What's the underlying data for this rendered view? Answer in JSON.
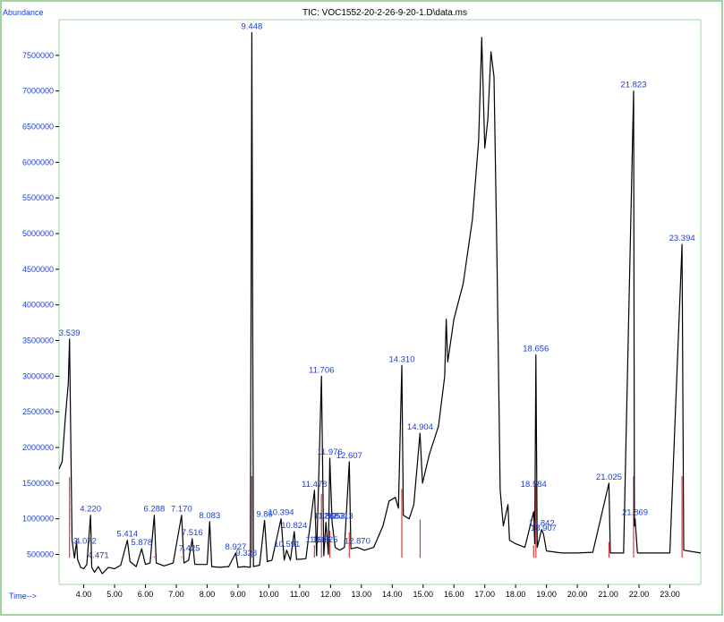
{
  "chart_data": {
    "type": "line",
    "title": "TIC: VOC1552-20-2-26-9-20-1.D\\data.ms",
    "ylabel": "Abundance",
    "xlabel": "Time-->",
    "xlim": [
      3.2,
      24.0
    ],
    "ylim": [
      80000,
      8000000
    ],
    "x_ticks": [
      "4.00",
      "5.00",
      "6.00",
      "7.00",
      "8.00",
      "9.00",
      "10.00",
      "11.00",
      "12.00",
      "13.00",
      "14.00",
      "15.00",
      "16.00",
      "17.00",
      "18.00",
      "19.00",
      "20.00",
      "21.00",
      "22.00",
      "23.00"
    ],
    "y_ticks": [
      "500000",
      "1000000",
      "1500000",
      "2000000",
      "2500000",
      "3000000",
      "3500000",
      "4000000",
      "4500000",
      "5000000",
      "5500000",
      "6000000",
      "6500000",
      "7000000",
      "7500000"
    ],
    "colors": {
      "trace": "#000000",
      "integration": "#d04040",
      "labels": "#1a3fd0",
      "axis_text": "#1a3fd0",
      "grid_frame": "#8ec98e"
    },
    "trace_points": [
      [
        3.2,
        1700000
      ],
      [
        3.3,
        1800000
      ],
      [
        3.4,
        2400000
      ],
      [
        3.5,
        2900000
      ],
      [
        3.539,
        3520000
      ],
      [
        3.58,
        2100000
      ],
      [
        3.62,
        700000
      ],
      [
        3.7,
        450000
      ],
      [
        3.77,
        680000
      ],
      [
        3.8,
        430000
      ],
      [
        3.9,
        320000
      ],
      [
        4.0,
        300000
      ],
      [
        4.1,
        360000
      ],
      [
        4.22,
        1050000
      ],
      [
        4.26,
        320000
      ],
      [
        4.35,
        250000
      ],
      [
        4.471,
        330000
      ],
      [
        4.6,
        230000
      ],
      [
        4.8,
        320000
      ],
      [
        5.0,
        300000
      ],
      [
        5.2,
        350000
      ],
      [
        5.414,
        700000
      ],
      [
        5.5,
        400000
      ],
      [
        5.7,
        330000
      ],
      [
        5.878,
        580000
      ],
      [
        6.0,
        360000
      ],
      [
        6.15,
        380000
      ],
      [
        6.288,
        1050000
      ],
      [
        6.35,
        380000
      ],
      [
        6.6,
        340000
      ],
      [
        6.9,
        380000
      ],
      [
        7.17,
        1050000
      ],
      [
        7.25,
        380000
      ],
      [
        7.4,
        420000
      ],
      [
        7.516,
        720000
      ],
      [
        7.6,
        360000
      ],
      [
        7.8,
        360000
      ],
      [
        8.0,
        360000
      ],
      [
        8.083,
        960000
      ],
      [
        8.15,
        330000
      ],
      [
        8.4,
        320000
      ],
      [
        8.7,
        330000
      ],
      [
        8.927,
        520000
      ],
      [
        9.0,
        320000
      ],
      [
        9.2,
        330000
      ],
      [
        9.4,
        320000
      ],
      [
        9.448,
        7820000
      ],
      [
        9.5,
        330000
      ],
      [
        9.7,
        350000
      ],
      [
        9.86,
        980000
      ],
      [
        9.95,
        400000
      ],
      [
        10.1,
        420000
      ],
      [
        10.394,
        1000000
      ],
      [
        10.5,
        420000
      ],
      [
        10.58,
        560000
      ],
      [
        10.7,
        420000
      ],
      [
        10.824,
        820000
      ],
      [
        10.9,
        430000
      ],
      [
        11.2,
        440000
      ],
      [
        11.478,
        1400000
      ],
      [
        11.55,
        480000
      ],
      [
        11.706,
        3000000
      ],
      [
        11.78,
        480000
      ],
      [
        11.85,
        950000
      ],
      [
        11.93,
        500000
      ],
      [
        11.976,
        1850000
      ],
      [
        12.05,
        950000
      ],
      [
        12.15,
        600000
      ],
      [
        12.3,
        560000
      ],
      [
        12.45,
        600000
      ],
      [
        12.607,
        1800000
      ],
      [
        12.66,
        580000
      ],
      [
        12.87,
        600000
      ],
      [
        13.1,
        560000
      ],
      [
        13.4,
        600000
      ],
      [
        13.7,
        900000
      ],
      [
        13.9,
        1250000
      ],
      [
        14.1,
        1300000
      ],
      [
        14.2,
        1150000
      ],
      [
        14.31,
        3150000
      ],
      [
        14.36,
        1050000
      ],
      [
        14.55,
        1000000
      ],
      [
        14.7,
        1200000
      ],
      [
        14.9,
        2200000
      ],
      [
        14.98,
        1500000
      ],
      [
        15.2,
        1900000
      ],
      [
        15.5,
        2300000
      ],
      [
        15.7,
        3000000
      ],
      [
        15.75,
        3800000
      ],
      [
        15.8,
        3200000
      ],
      [
        16.0,
        3800000
      ],
      [
        16.3,
        4300000
      ],
      [
        16.6,
        5200000
      ],
      [
        16.8,
        6300000
      ],
      [
        16.9,
        7750000
      ],
      [
        17.0,
        6200000
      ],
      [
        17.1,
        6600000
      ],
      [
        17.2,
        7550000
      ],
      [
        17.3,
        7200000
      ],
      [
        17.4,
        4500000
      ],
      [
        17.5,
        1400000
      ],
      [
        17.6,
        900000
      ],
      [
        17.75,
        1200000
      ],
      [
        17.8,
        700000
      ],
      [
        18.0,
        650000
      ],
      [
        18.3,
        600000
      ],
      [
        18.584,
        1100000
      ],
      [
        18.62,
        650000
      ],
      [
        18.656,
        3300000
      ],
      [
        18.7,
        600000
      ],
      [
        18.842,
        850000
      ],
      [
        18.907,
        780000
      ],
      [
        19.0,
        550000
      ],
      [
        19.5,
        520000
      ],
      [
        20.0,
        520000
      ],
      [
        20.5,
        530000
      ],
      [
        21.025,
        1500000
      ],
      [
        21.07,
        520000
      ],
      [
        21.5,
        520000
      ],
      [
        21.823,
        7000000
      ],
      [
        21.85,
        900000
      ],
      [
        21.87,
        1000000
      ],
      [
        21.95,
        520000
      ],
      [
        22.5,
        520000
      ],
      [
        23.0,
        520000
      ],
      [
        23.394,
        4850000
      ],
      [
        23.45,
        560000
      ],
      [
        24.0,
        520000
      ]
    ],
    "peak_labels": [
      {
        "text": "3.539",
        "x": 3.539,
        "y": 3520000
      },
      {
        "text": "3.",
        "x": 3.77,
        "y": 600000
      },
      {
        "text": "4.072",
        "x": 4.07,
        "y": 600000
      },
      {
        "text": "4.220",
        "x": 4.22,
        "y": 1050000
      },
      {
        "text": "4.471",
        "x": 4.471,
        "y": 400000
      },
      {
        "text": "5.414",
        "x": 5.414,
        "y": 700000
      },
      {
        "text": "5.878",
        "x": 5.878,
        "y": 580000
      },
      {
        "text": "6.288",
        "x": 6.288,
        "y": 1050000
      },
      {
        "text": "7.170",
        "x": 7.17,
        "y": 1050000
      },
      {
        "text": "7.516",
        "x": 7.516,
        "y": 720000
      },
      {
        "text": "7.425",
        "x": 7.425,
        "y": 500000
      },
      {
        "text": "8.083",
        "x": 8.083,
        "y": 960000
      },
      {
        "text": "8.927",
        "x": 8.927,
        "y": 520000
      },
      {
        "text": "9.328",
        "x": 9.27,
        "y": 430000
      },
      {
        "text": "9.448",
        "x": 9.448,
        "y": 7820000
      },
      {
        "text": "9.86",
        "x": 9.86,
        "y": 980000
      },
      {
        "text": "10.394",
        "x": 10.394,
        "y": 1000000
      },
      {
        "text": "10.824",
        "x": 10.824,
        "y": 820000
      },
      {
        "text": "10.591",
        "x": 10.591,
        "y": 560000
      },
      {
        "text": "11.478",
        "x": 11.478,
        "y": 1400000
      },
      {
        "text": "11.706",
        "x": 11.706,
        "y": 3000000
      },
      {
        "text": "11.976",
        "x": 11.976,
        "y": 1850000
      },
      {
        "text": "11.868",
        "x": 11.868,
        "y": 950000
      },
      {
        "text": "12.053",
        "x": 12.053,
        "y": 950000
      },
      {
        "text": "12.313",
        "x": 12.313,
        "y": 950000
      },
      {
        "text": "11.605",
        "x": 11.605,
        "y": 620000
      },
      {
        "text": "11.825",
        "x": 11.825,
        "y": 620000
      },
      {
        "text": "12.607",
        "x": 12.607,
        "y": 1800000
      },
      {
        "text": "12.870",
        "x": 12.87,
        "y": 600000
      },
      {
        "text": "14.310",
        "x": 14.31,
        "y": 3150000
      },
      {
        "text": "14.904",
        "x": 14.904,
        "y": 2200000
      },
      {
        "text": "18.656",
        "x": 18.656,
        "y": 3300000
      },
      {
        "text": "18.584",
        "x": 18.584,
        "y": 1400000
      },
      {
        "text": "18.842",
        "x": 18.842,
        "y": 850000
      },
      {
        "text": "18.907",
        "x": 18.907,
        "y": 780000
      },
      {
        "text": "21.025",
        "x": 21.025,
        "y": 1500000
      },
      {
        "text": "21.823",
        "x": 21.823,
        "y": 7000000
      },
      {
        "text": "21.869",
        "x": 21.869,
        "y": 1000000
      },
      {
        "text": "23.394",
        "x": 23.394,
        "y": 4850000
      }
    ]
  }
}
